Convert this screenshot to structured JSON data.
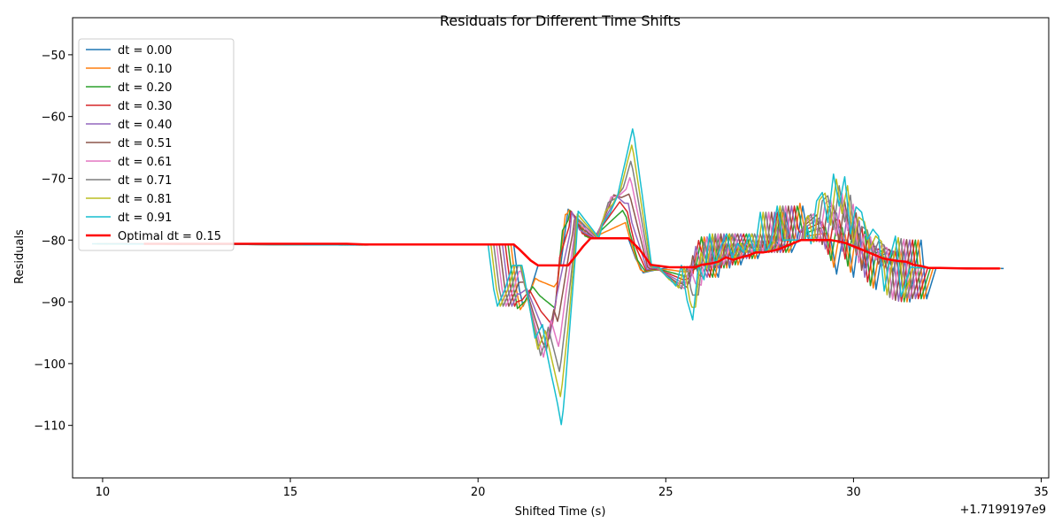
{
  "chart_data": {
    "type": "line",
    "title": "Residuals for Different Time Shifts",
    "xlabel": "Shifted Time (s)",
    "ylabel": "Residuals",
    "x_offset_label": "+1.7199197e9",
    "xlim": [
      9.2,
      35.2
    ],
    "ylim": [
      -118.5,
      -44.0
    ],
    "xticks": [
      10,
      15,
      20,
      25,
      30,
      35
    ],
    "yticks": [
      -110,
      -100,
      -90,
      -80,
      -70,
      -60,
      -50
    ],
    "legend_position": "upper left",
    "colors": {
      "dt = 0.00": "#1f77b4",
      "dt = 0.10": "#ff7f0e",
      "dt = 0.20": "#2ca02c",
      "dt = 0.30": "#d62728",
      "dt = 0.40": "#9467bd",
      "dt = 0.51": "#8c564b",
      "dt = 0.61": "#e377c2",
      "dt = 0.71": "#7f7f7f",
      "dt = 0.81": "#bcbd22",
      "dt = 0.91": "#17becf",
      "Optimal dt = 0.15": "#ff0000"
    },
    "base_series": {
      "x": [
        10.4,
        17.0,
        20.95,
        21.1,
        21.2,
        21.4,
        21.6,
        22.0,
        22.2,
        22.4,
        22.8,
        23.0,
        23.4,
        23.6,
        24.0,
        24.2,
        24.4,
        24.6,
        25.1,
        25.3,
        25.5,
        25.7,
        25.8,
        25.95,
        26.1,
        26.25,
        26.4,
        26.55,
        26.7,
        26.85,
        27.0,
        27.15,
        27.3,
        27.45,
        27.6,
        27.75,
        27.9,
        28.05,
        28.2,
        28.35,
        28.5,
        28.65,
        28.8,
        28.95,
        29.1,
        29.25,
        29.4,
        29.55,
        29.7,
        29.85,
        30.0,
        30.15,
        30.3,
        30.45,
        30.6,
        30.75,
        30.9,
        31.05,
        31.2,
        31.35,
        31.5,
        31.65,
        31.8,
        31.95,
        32.2,
        34.0
      ],
      "y": [
        -80.6,
        -80.8,
        -80.7,
        -88.0,
        -90.7,
        -88.0,
        -84.1,
        -84.1,
        -84.1,
        -75.0,
        -77.5,
        -79.7,
        -79.7,
        -79.7,
        -79.7,
        -83.0,
        -85.3,
        -85.0,
        -84.4,
        -84.4,
        -84.4,
        -84.4,
        -84.0,
        -84.0,
        -79.5,
        -84.0,
        -86.0,
        -79.5,
        -84.5,
        -79.0,
        -84.0,
        -81.0,
        -79.0,
        -83.0,
        -80.5,
        -82.0,
        -79.0,
        -82.0,
        -75.5,
        -82.0,
        -80.0,
        -74.5,
        -80.0,
        -80.0,
        -80.0,
        -80.0,
        -80.0,
        -85.5,
        -80.0,
        -80.0,
        -86.0,
        -79.0,
        -84.5,
        -79.5,
        -88.0,
        -82.5,
        -82.0,
        -85.0,
        -82.0,
        -82.0,
        -90.0,
        -84.0,
        -80.0,
        -89.5,
        -84.5,
        -84.6
      ]
    },
    "series": [
      {
        "name": "dt = 0.00"
      },
      {
        "name": "dt = 0.10"
      },
      {
        "name": "dt = 0.20"
      },
      {
        "name": "dt = 0.30"
      },
      {
        "name": "dt = 0.40"
      },
      {
        "name": "dt = 0.51"
      },
      {
        "name": "dt = 0.61"
      },
      {
        "name": "dt = 0.71"
      },
      {
        "name": "dt = 0.81"
      },
      {
        "name": "dt = 0.91"
      },
      {
        "name": "Optimal dt = 0.15",
        "x": [
          11.1,
          16.5,
          17.0,
          19.5,
          20.0,
          20.5,
          20.95,
          21.1,
          21.4,
          21.6,
          22.0,
          22.4,
          22.8,
          23.0,
          23.4,
          23.6,
          24.0,
          24.3,
          24.6,
          25.1,
          25.5,
          25.8,
          25.95,
          26.2,
          26.4,
          26.6,
          26.8,
          27.0,
          27.2,
          27.4,
          27.6,
          27.8,
          28.0,
          28.2,
          28.4,
          28.6,
          28.8,
          29.0,
          29.2,
          29.4,
          29.6,
          29.8,
          30.0,
          30.2,
          30.4,
          30.6,
          30.8,
          31.0,
          31.2,
          31.4,
          31.6,
          31.8,
          32.0,
          32.3,
          33.0,
          33.9
        ],
        "y": [
          -80.6,
          -80.6,
          -80.7,
          -80.7,
          -80.7,
          -80.7,
          -80.7,
          -81.5,
          -83.3,
          -84.1,
          -84.1,
          -84.1,
          -81.0,
          -79.7,
          -79.7,
          -79.7,
          -79.7,
          -81.5,
          -84.0,
          -84.4,
          -84.4,
          -84.4,
          -84.0,
          -83.8,
          -83.5,
          -82.8,
          -83.2,
          -82.8,
          -82.5,
          -82.0,
          -82.0,
          -81.8,
          -81.5,
          -81.0,
          -80.5,
          -80.0,
          -80.0,
          -80.0,
          -80.0,
          -80.0,
          -80.2,
          -80.5,
          -81.0,
          -81.5,
          -82.0,
          -82.5,
          -83.0,
          -83.2,
          -83.4,
          -83.5,
          -84.0,
          -84.2,
          -84.5,
          -84.5,
          -84.6,
          -84.6
        ]
      }
    ]
  }
}
